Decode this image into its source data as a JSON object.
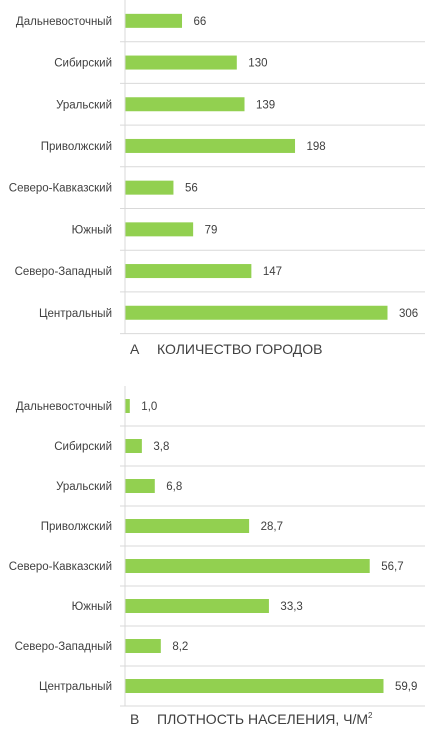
{
  "chart_data": [
    {
      "type": "bar",
      "orientation": "horizontal",
      "panel_letter": "А",
      "caption": "КОЛИЧЕСТВО ГОРОДОВ",
      "caption_sup": "",
      "categories": [
        "Дальневосточный",
        "Сибирский",
        "Уральский",
        "Приволжский",
        "Северо-Кавказский",
        "Южный",
        "Северо-Западный",
        "Центральный"
      ],
      "values": [
        66,
        130,
        139,
        198,
        56,
        79,
        147,
        306
      ],
      "value_labels": [
        "66",
        "130",
        "139",
        "198",
        "56",
        "79",
        "147",
        "306"
      ],
      "xlim": [
        0,
        306
      ],
      "grid": "horizontal separators",
      "bar_color": "#92d050"
    },
    {
      "type": "bar",
      "orientation": "horizontal",
      "panel_letter": "В",
      "caption": "ПЛОТНОСТЬ НАСЕЛЕНИЯ, Ч/М",
      "caption_sup": "2",
      "categories": [
        "Дальневосточный",
        "Сибирский",
        "Уральский",
        "Приволжский",
        "Северо-Кавказский",
        "Южный",
        "Северо-Западный",
        "Центральный"
      ],
      "values": [
        1.0,
        3.8,
        6.8,
        28.7,
        56.7,
        33.3,
        8.2,
        59.9
      ],
      "value_labels": [
        "1,0",
        "3,8",
        "6,8",
        "28,7",
        "56,7",
        "33,3",
        "8,2",
        "59,9"
      ],
      "xlim": [
        0,
        59.9
      ],
      "grid": "horizontal separators",
      "bar_color": "#92d050"
    }
  ]
}
